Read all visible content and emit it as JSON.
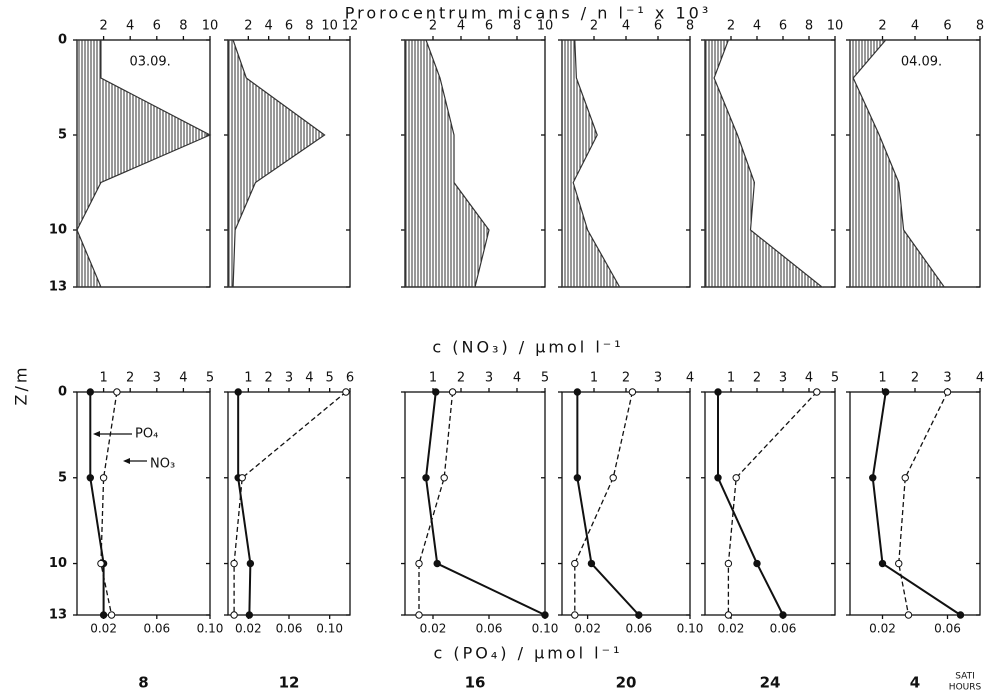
{
  "labels": {
    "top_axis": "Prorocentrum  micans / n l⁻¹ x 10³",
    "no3_axis": "c  (NO₃) / µmol  l⁻¹",
    "po4_axis": "c  (PO₄) / µmol  l⁻¹",
    "depth_axis": "Z/m",
    "po4_name": "PO₄",
    "no3_name": "NO₃",
    "hours": [
      "8",
      "12",
      "16",
      "20",
      "24",
      "4"
    ],
    "hours_unit": [
      "SATI",
      "HOURS"
    ]
  },
  "chart_data": [
    {
      "type": "area",
      "annotation": "03.09.",
      "y": [
        0,
        2,
        5,
        7.5,
        10,
        13
      ],
      "values": [
        1.8,
        1.8,
        10,
        1.8,
        0,
        1.8
      ],
      "xlim": [
        0,
        10
      ],
      "xticks": [
        2,
        4,
        6,
        8,
        10
      ],
      "ylim": [
        0,
        13
      ],
      "yticks": [
        0,
        5,
        10,
        13
      ],
      "color": "#333333"
    },
    {
      "type": "area",
      "y": [
        0,
        2,
        5,
        7.5,
        10,
        13
      ],
      "values": [
        0.5,
        1.8,
        9.5,
        2.7,
        0.7,
        0.5
      ],
      "xlim": [
        0,
        12
      ],
      "xticks": [
        2,
        4,
        6,
        8,
        10,
        12
      ],
      "ylim": [
        0,
        13
      ],
      "yticks": [
        0,
        5,
        10,
        13
      ],
      "color": "#333333"
    },
    {
      "type": "area",
      "y": [
        0,
        2,
        5,
        7.5,
        10,
        13
      ],
      "values": [
        1.5,
        2.5,
        3.5,
        3.5,
        6,
        5
      ],
      "xlim": [
        0,
        10
      ],
      "xticks": [
        2,
        4,
        6,
        8,
        10
      ],
      "ylim": [
        0,
        13
      ],
      "yticks": [
        0,
        5,
        10,
        13
      ],
      "color": "#333333"
    },
    {
      "type": "area",
      "y": [
        0,
        2,
        5,
        7.5,
        10,
        13
      ],
      "values": [
        0.8,
        0.9,
        2.2,
        0.7,
        1.6,
        3.6
      ],
      "xlim": [
        0,
        8
      ],
      "xticks": [
        2,
        4,
        6,
        8
      ],
      "ylim": [
        0,
        13
      ],
      "yticks": [
        0,
        5,
        10,
        13
      ],
      "color": "#333333"
    },
    {
      "type": "area",
      "y": [
        0,
        2,
        5,
        7.5,
        10,
        13
      ],
      "values": [
        1.8,
        0.7,
        2.5,
        3.8,
        3.5,
        9
      ],
      "xlim": [
        0,
        10
      ],
      "xticks": [
        2,
        4,
        6,
        8,
        10
      ],
      "ylim": [
        0,
        13
      ],
      "yticks": [
        0,
        5,
        10,
        13
      ],
      "color": "#333333"
    },
    {
      "type": "area",
      "annotation": "04.09.",
      "y": [
        0,
        2,
        5,
        7.5,
        10,
        13
      ],
      "values": [
        2.2,
        0.2,
        1.8,
        3,
        3.3,
        5.8
      ],
      "xlim": [
        0,
        8
      ],
      "xticks": [
        2,
        4,
        6,
        8
      ],
      "ylim": [
        0,
        13
      ],
      "yticks": [
        0,
        5,
        10,
        13
      ],
      "color": "#333333"
    },
    {
      "type": "profile",
      "y": [
        0,
        5,
        10,
        13
      ],
      "series": [
        {
          "values": [
            0.01,
            0.01,
            0.02,
            0.02
          ],
          "marker": "filled"
        },
        {
          "values": [
            1.5,
            1.0,
            0.9,
            1.3
          ],
          "marker": "open",
          "axis": "x2"
        }
      ],
      "xlim": [
        0,
        0.1
      ],
      "xticks": [
        0.02,
        0.06,
        {
          "value": 0.1,
          "label": "0.10"
        }
      ],
      "x2lim": [
        0,
        5
      ],
      "x2ticks": [
        1,
        2,
        3,
        4,
        5
      ],
      "ylim": [
        0,
        13
      ],
      "yticks": [
        0,
        5,
        10,
        13
      ]
    },
    {
      "type": "profile",
      "y": [
        0,
        5,
        10,
        13
      ],
      "series": [
        {
          "values": [
            0.01,
            0.01,
            0.022,
            0.021
          ],
          "marker": "filled"
        },
        {
          "values": [
            5.8,
            0.7,
            0.3,
            0.3
          ],
          "marker": "open",
          "axis": "x2"
        }
      ],
      "xlim": [
        0,
        0.12
      ],
      "xticks": [
        0.02,
        0.06,
        {
          "value": 0.1,
          "label": "0.10"
        }
      ],
      "x2lim": [
        0,
        6
      ],
      "x2ticks": [
        1,
        2,
        3,
        4,
        5,
        6
      ],
      "ylim": [
        0,
        13
      ],
      "yticks": [
        0,
        5,
        10,
        13
      ]
    },
    {
      "type": "profile",
      "y": [
        0,
        5,
        10,
        13
      ],
      "series": [
        {
          "values": [
            0.022,
            0.015,
            0.023,
            0.1
          ],
          "marker": "filled"
        },
        {
          "values": [
            1.7,
            1.4,
            0.5,
            0.5
          ],
          "marker": "open",
          "axis": "x2"
        }
      ],
      "xlim": [
        0,
        0.1
      ],
      "xticks": [
        0.02,
        0.06,
        {
          "value": 0.1,
          "label": "0.10"
        }
      ],
      "x2lim": [
        0,
        5
      ],
      "x2ticks": [
        1,
        2,
        3,
        4,
        5
      ],
      "ylim": [
        0,
        13
      ],
      "yticks": [
        0,
        5,
        10,
        13
      ]
    },
    {
      "type": "profile",
      "y": [
        0,
        5,
        10,
        13
      ],
      "series": [
        {
          "values": [
            0.012,
            0.012,
            0.023,
            0.06
          ],
          "marker": "filled"
        },
        {
          "values": [
            2.2,
            1.6,
            0.4,
            0.4
          ],
          "marker": "open",
          "axis": "x2"
        }
      ],
      "xlim": [
        0,
        0.1
      ],
      "xticks": [
        0.02,
        0.06,
        {
          "value": 0.1,
          "label": "0.10"
        }
      ],
      "x2lim": [
        0,
        4
      ],
      "x2ticks": [
        1,
        2,
        3,
        4
      ],
      "ylim": [
        0,
        13
      ],
      "yticks": [
        0,
        5,
        10,
        13
      ]
    },
    {
      "type": "profile",
      "y": [
        0,
        5,
        10,
        13
      ],
      "series": [
        {
          "values": [
            0.01,
            0.01,
            0.04,
            0.06
          ],
          "marker": "filled"
        },
        {
          "values": [
            4.3,
            1.2,
            0.9,
            0.9
          ],
          "marker": "open",
          "axis": "x2"
        }
      ],
      "xlim": [
        0,
        0.1
      ],
      "xticks": [
        0.02,
        0.06
      ],
      "x2lim": [
        0,
        5
      ],
      "x2ticks": [
        1,
        2,
        3,
        4,
        5
      ],
      "ylim": [
        0,
        13
      ],
      "yticks": [
        0,
        5,
        10,
        13
      ]
    },
    {
      "type": "profile",
      "y": [
        0,
        5,
        10,
        13
      ],
      "series": [
        {
          "values": [
            0.022,
            0.014,
            0.02,
            0.068
          ],
          "marker": "filled"
        },
        {
          "values": [
            3.0,
            1.7,
            1.5,
            1.8
          ],
          "marker": "open",
          "axis": "x2"
        }
      ],
      "xlim": [
        0,
        0.08
      ],
      "xticks": [
        0.02,
        0.06
      ],
      "x2lim": [
        0,
        4
      ],
      "x2ticks": [
        1,
        2,
        3,
        4
      ],
      "ylim": [
        0,
        13
      ],
      "yticks": [
        0,
        5,
        10,
        13
      ]
    }
  ]
}
